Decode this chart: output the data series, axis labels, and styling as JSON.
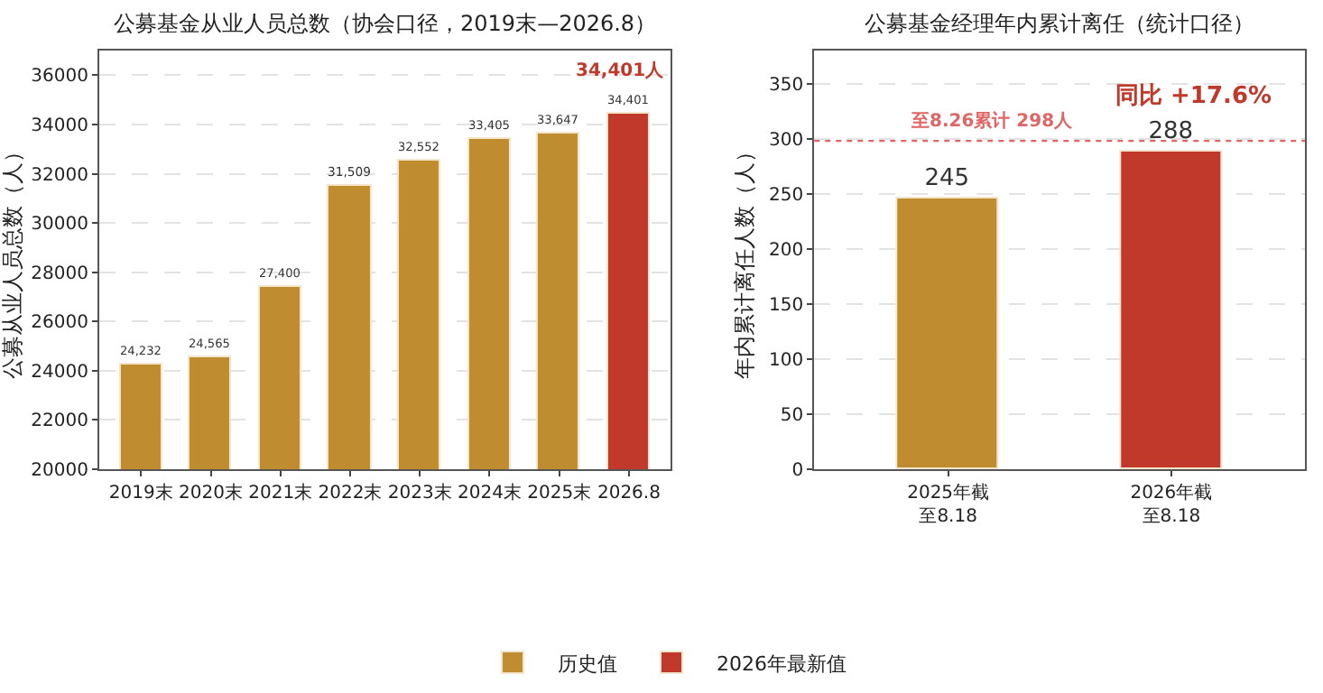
{
  "chart_data": [
    {
      "type": "bar",
      "title": "公募基金从业人员总数（协会口径，2019末—2026.8）",
      "ylabel": "公募从业人员总数（人）",
      "categories": [
        "2019末",
        "2020末",
        "2021末",
        "2022末",
        "2023末",
        "2024末",
        "2025末",
        "2026.8"
      ],
      "series": [
        {
          "name": "历史值",
          "color": "#bf8c30",
          "values": [
            24232,
            24565,
            27400,
            31509,
            32552,
            33405,
            33647,
            null
          ],
          "value_labels": [
            "24,232",
            "24,565",
            "27,400",
            "31,509",
            "32,552",
            "33,405",
            "33,647",
            null
          ]
        },
        {
          "name": "2026年最新值",
          "color": "#c0392b",
          "values": [
            null,
            null,
            null,
            null,
            null,
            null,
            null,
            34401
          ],
          "value_labels": [
            null,
            null,
            null,
            null,
            null,
            null,
            null,
            "34,401"
          ]
        }
      ],
      "ylim": [
        20000,
        37000
      ],
      "yticks": [
        20000,
        22000,
        24000,
        26000,
        28000,
        30000,
        32000,
        34000,
        36000
      ],
      "grid": "y",
      "legend": "bottom",
      "annotations": [
        {
          "text": "34,401人",
          "x": "2026.8",
          "y": 34401
        }
      ]
    },
    {
      "type": "bar",
      "title": "公募基金经理年内累计离任（统计口径）",
      "ylabel": "年内累计离任人数（人）",
      "categories": [
        "2025年截至8.18",
        "2026年截至8.18"
      ],
      "values": [
        245,
        288
      ],
      "colors": [
        "#bf8c30",
        "#c0392b"
      ],
      "data_labels": true,
      "ylim": [
        0,
        380
      ],
      "yticks": [
        0,
        50,
        100,
        150,
        200,
        250,
        300,
        350
      ],
      "grid": "y",
      "ref_lines": [
        {
          "axis": "y",
          "value": 298,
          "label": "至8.26累计 298人",
          "color": "#e06666",
          "line_style": "dotted"
        }
      ],
      "annotations": [
        "同比 +17.6%"
      ]
    }
  ]
}
